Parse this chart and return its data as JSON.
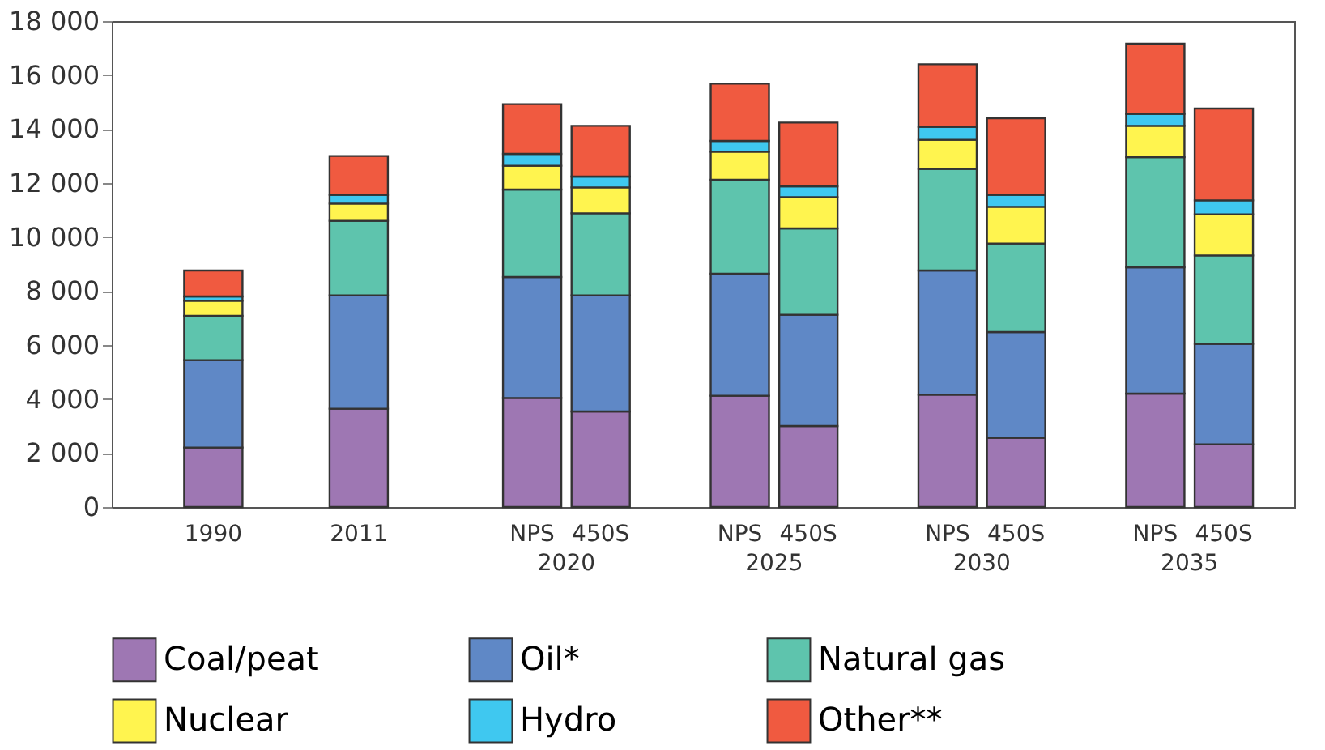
{
  "chart_data": {
    "type": "bar",
    "stacked": true,
    "categories": [
      "1990",
      "2011",
      "NPS",
      "450S",
      "NPS",
      "450S",
      "NPS",
      "450S",
      "NPS",
      "450S"
    ],
    "annotations": [
      "2020",
      "2025",
      "2030",
      "2035"
    ],
    "series": [
      {
        "name": "Coal/peat",
        "color": "#9e77b3",
        "values": [
          2200,
          3640,
          4040,
          3540,
          4120,
          3000,
          4160,
          2560,
          4200,
          2320
        ]
      },
      {
        "name": "Oil*",
        "color": "#5f88c6",
        "values": [
          3240,
          4200,
          4480,
          4300,
          4520,
          4120,
          4600,
          3920,
          4680,
          3720
        ]
      },
      {
        "name": "Natural gas",
        "color": "#5ec4ad",
        "values": [
          1640,
          2760,
          3240,
          3040,
          3480,
          3200,
          3760,
          3280,
          4080,
          3280
        ]
      },
      {
        "name": "Nuclear",
        "color": "#fff44f",
        "values": [
          560,
          640,
          880,
          960,
          1040,
          1160,
          1080,
          1360,
          1160,
          1520
        ]
      },
      {
        "name": "Hydro",
        "color": "#3fc8f0",
        "values": [
          160,
          320,
          440,
          400,
          400,
          400,
          480,
          440,
          440,
          520
        ]
      },
      {
        "name": "Other**",
        "color": "#f05a40",
        "values": [
          960,
          1440,
          1840,
          1880,
          2120,
          2360,
          2320,
          2840,
          2600,
          3400
        ]
      }
    ],
    "ylim": [
      0,
      18000
    ],
    "yticks": [
      0,
      {
        "value": 2000,
        "label": "2 000"
      },
      {
        "value": 4000,
        "label": "4 000"
      },
      {
        "value": 6000,
        "label": "6 000"
      },
      {
        "value": 8000,
        "label": "8 000"
      },
      {
        "value": 10000,
        "label": "10 000"
      },
      {
        "value": 12000,
        "label": "12 000"
      },
      {
        "value": 14000,
        "label": "14 000"
      },
      {
        "value": 16000,
        "label": "16 000"
      },
      {
        "value": 18000,
        "label": "18 000"
      }
    ],
    "grid": false,
    "legend": "bottom"
  }
}
